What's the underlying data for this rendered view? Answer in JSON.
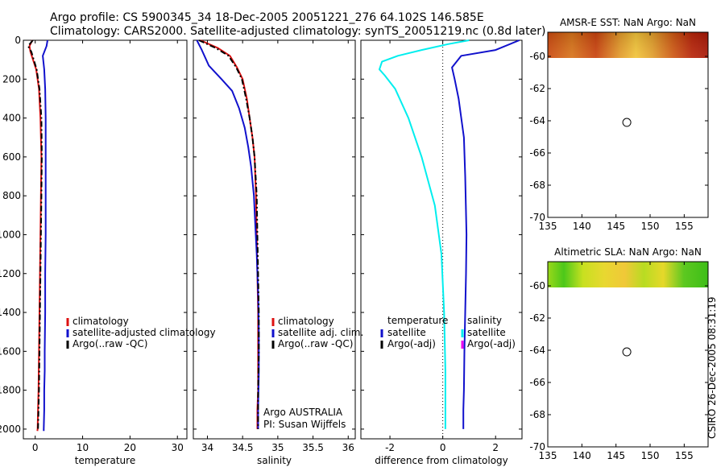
{
  "header": {
    "line1": "Argo profile: CS 5900345_34 18-Dec-2005 20051221_276 64.102S 146.585E",
    "line2": "Climatology: CARS2000. Satellite-adjusted climatology: synTS_20051219.nc (0.8d later)"
  },
  "side_stamp": "CSIRO 26-Dec-2005 08:31:19",
  "colors": {
    "clim": "#dd1111",
    "sat": "#1111cc",
    "argo": "#000000",
    "cyan": "#00eeee",
    "magenta": "#ee00ee"
  },
  "chart_data": [
    {
      "type": "line",
      "title": "",
      "xlabel": "temperature",
      "ylabel": "",
      "xlim": [
        -2.5,
        32
      ],
      "ylim": [
        2050,
        0
      ],
      "xticks": [
        0,
        10,
        20,
        30
      ],
      "yticks": [
        0,
        200,
        400,
        600,
        800,
        1000,
        1200,
        1400,
        1600,
        1800,
        2000
      ],
      "legend": [
        "climatology",
        "satellite-adjusted climatology",
        "Argo(..raw -QC)"
      ],
      "series": [
        {
          "name": "climatology",
          "color": "clim",
          "style": "solid",
          "x": [
            -0.6,
            -1.2,
            -1.0,
            0.2,
            0.8,
            1.1,
            1.3,
            1.2,
            1.1,
            1.0,
            0.9,
            0.8,
            0.7,
            0.6,
            0.5,
            0.45
          ],
          "y": [
            0,
            30,
            60,
            150,
            250,
            400,
            600,
            800,
            1000,
            1200,
            1400,
            1600,
            1800,
            1900,
            2000,
            2010
          ]
        },
        {
          "name": "satellite-adjusted climatology",
          "color": "sat",
          "style": "solid",
          "x": [
            2.6,
            2.4,
            1.6,
            1.9,
            2.1,
            2.2,
            2.2,
            2.2,
            2.2,
            2.1,
            2.1,
            2.0,
            2.0,
            1.9,
            1.9,
            1.8,
            1.8
          ],
          "y": [
            0,
            30,
            80,
            150,
            250,
            400,
            600,
            800,
            1000,
            1200,
            1400,
            1600,
            1700,
            1800,
            1900,
            2000,
            2010
          ]
        },
        {
          "name": "Argo(..raw -QC)",
          "color": "argo",
          "style": "dashdot",
          "x": [
            -0.5,
            -1.5,
            -0.8,
            0.3,
            0.9,
            1.3,
            1.4,
            1.3,
            1.2,
            1.1,
            1.0,
            0.9,
            0.8,
            0.7,
            0.6
          ],
          "y": [
            0,
            30,
            60,
            150,
            250,
            400,
            600,
            800,
            1000,
            1200,
            1400,
            1600,
            1800,
            1900,
            2000
          ]
        }
      ]
    },
    {
      "type": "line",
      "title": "",
      "xlabel": "salinity",
      "ylabel": "",
      "xlim": [
        33.8,
        36.1
      ],
      "ylim": [
        2050,
        0
      ],
      "xticks": [
        34,
        34.5,
        35,
        35.5,
        36
      ],
      "yticks": [
        0,
        200,
        400,
        600,
        800,
        1000,
        1200,
        1400,
        1600,
        1800,
        2000
      ],
      "legend": [
        "climatology",
        "satellite adj. clim.",
        "Argo(..raw -QC)"
      ],
      "annotations": [
        "Argo AUSTRALIA",
        "PI: Susan Wijffels"
      ],
      "series": [
        {
          "name": "climatology",
          "color": "clim",
          "style": "solid",
          "x": [
            33.9,
            34.15,
            34.32,
            34.42,
            34.5,
            34.56,
            34.6,
            34.64,
            34.67,
            34.69,
            34.7,
            34.71,
            34.72,
            34.72,
            34.72,
            34.71,
            34.71
          ],
          "y": [
            0,
            40,
            80,
            140,
            200,
            300,
            400,
            500,
            600,
            800,
            1000,
            1200,
            1400,
            1600,
            1800,
            1900,
            2000
          ]
        },
        {
          "name": "satellite adj. clim.",
          "color": "sat",
          "style": "solid",
          "x": [
            33.85,
            33.92,
            34.02,
            34.2,
            34.35,
            34.45,
            34.53,
            34.58,
            34.62,
            34.66,
            34.68,
            34.7,
            34.72,
            34.73,
            34.73,
            34.72,
            34.72
          ],
          "y": [
            0,
            50,
            130,
            200,
            260,
            350,
            450,
            550,
            650,
            800,
            950,
            1100,
            1300,
            1500,
            1700,
            1900,
            2000
          ]
        },
        {
          "name": "Argo(..raw -QC)",
          "color": "argo",
          "style": "dashdot",
          "x": [
            33.88,
            34.12,
            34.3,
            34.41,
            34.49,
            34.55,
            34.6,
            34.64,
            34.67,
            34.7,
            34.71,
            34.72,
            34.73,
            34.73,
            34.72,
            34.72
          ],
          "y": [
            0,
            40,
            80,
            140,
            200,
            300,
            400,
            500,
            600,
            800,
            1000,
            1200,
            1400,
            1600,
            1800,
            2000
          ]
        }
      ]
    },
    {
      "type": "line",
      "title": "",
      "xlabel": "difference from climatology",
      "ylabel": "",
      "xlim": [
        -3.1,
        3.0
      ],
      "ylim": [
        2050,
        0
      ],
      "xticks": [
        -2,
        0,
        2
      ],
      "yticks": [
        0,
        200,
        400,
        600,
        800,
        1000,
        1200,
        1400,
        1600,
        1800,
        2000
      ],
      "legend_left": {
        "header": "temperature",
        "items": [
          "satellite",
          "Argo(-adj)"
        ]
      },
      "legend_right": {
        "header": "salinity",
        "items": [
          "satellite",
          "Argo(-adj)"
        ]
      },
      "series": [
        {
          "name": "temperature satellite",
          "color": "sat",
          "style": "solid",
          "x": [
            2.9,
            2.0,
            0.7,
            0.35,
            0.45,
            0.6,
            0.7,
            0.8,
            0.85,
            0.9,
            0.88,
            0.85,
            0.82,
            0.8,
            0.78,
            0.78
          ],
          "y": [
            0,
            50,
            80,
            140,
            200,
            300,
            400,
            500,
            700,
            1000,
            1200,
            1400,
            1600,
            1800,
            1900,
            2000
          ]
        },
        {
          "name": "salinity satellite",
          "color": "cyan",
          "style": "solid",
          "x": [
            1.0,
            0.2,
            -0.8,
            -1.7,
            -2.3,
            -2.4,
            -2.2,
            -1.8,
            -1.3,
            -0.8,
            -0.3,
            -0.05,
            0.05,
            0.1,
            0.1,
            0.1
          ],
          "y": [
            0,
            20,
            50,
            80,
            110,
            150,
            180,
            250,
            400,
            600,
            850,
            1100,
            1400,
            1700,
            1900,
            2000
          ]
        }
      ]
    },
    {
      "type": "heatmap",
      "title": "AMSR-E SST: NaN Argo: NaN",
      "xlim": [
        135,
        158.5
      ],
      "ylim": [
        -70,
        -58.5
      ],
      "xticks": [
        135,
        140,
        145,
        150,
        155
      ],
      "yticks": [
        -60,
        -62,
        -64,
        -66,
        -68,
        -70
      ],
      "data_band": [
        -60.1,
        -58.5
      ],
      "marker": {
        "x": 146.585,
        "y": -64.102
      }
    },
    {
      "type": "heatmap",
      "title": "Altimetric SLA: NaN Argo: NaN",
      "xlim": [
        135,
        158.5
      ],
      "ylim": [
        -70,
        -58.5
      ],
      "xticks": [
        135,
        140,
        145,
        150,
        155
      ],
      "yticks": [
        -60,
        -62,
        -64,
        -66,
        -68,
        -70
      ],
      "data_band": [
        -60.1,
        -58.5
      ],
      "marker": {
        "x": 146.585,
        "y": -64.102
      }
    }
  ]
}
